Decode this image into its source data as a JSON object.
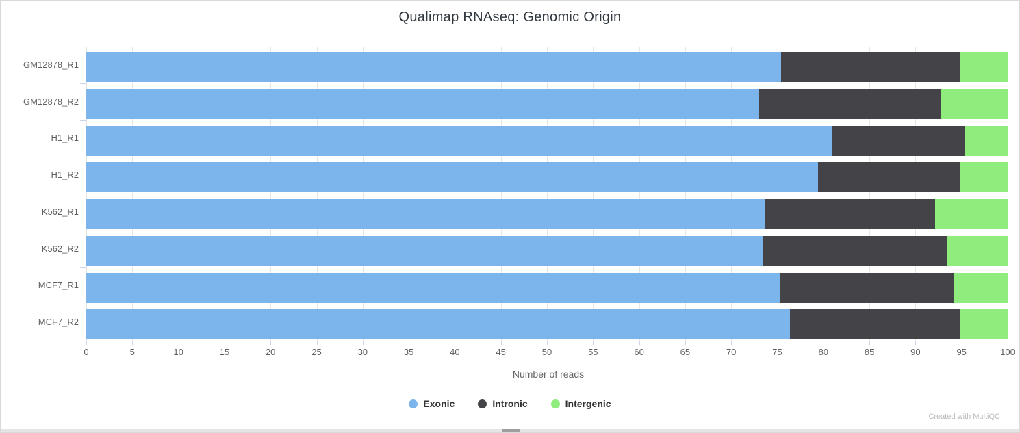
{
  "header": {
    "title": "Qualimap RNAseq: Genomic Origin"
  },
  "watermark": {
    "text": "Created with MultiQC"
  },
  "chart_data": {
    "type": "bar",
    "orientation": "horizontal",
    "stacked": true,
    "units": "percent",
    "title": "Qualimap RNAseq: Genomic Origin",
    "xlabel": "Number of reads",
    "ylabel": "",
    "xlim": [
      0,
      100
    ],
    "xticks": [
      0,
      5,
      10,
      15,
      20,
      25,
      30,
      35,
      40,
      45,
      50,
      55,
      60,
      65,
      70,
      75,
      80,
      85,
      90,
      95,
      100
    ],
    "grid": true,
    "legend_position": "bottom",
    "categories": [
      "GM12878_R1",
      "GM12878_R2",
      "H1_R1",
      "H1_R2",
      "K562_R1",
      "K562_R2",
      "MCF7_R1",
      "MCF7_R2"
    ],
    "series": [
      {
        "name": "Exonic",
        "color": "#7cb5ec",
        "values": [
          75.4,
          73.0,
          80.9,
          79.4,
          73.7,
          73.5,
          75.3,
          76.4
        ]
      },
      {
        "name": "Intronic",
        "color": "#434348",
        "values": [
          19.5,
          19.8,
          14.4,
          15.4,
          18.4,
          19.9,
          18.8,
          18.4
        ]
      },
      {
        "name": "Intergenic",
        "color": "#90ed7d",
        "values": [
          5.1,
          7.2,
          4.7,
          5.2,
          7.9,
          6.6,
          5.9,
          5.2
        ]
      }
    ]
  }
}
